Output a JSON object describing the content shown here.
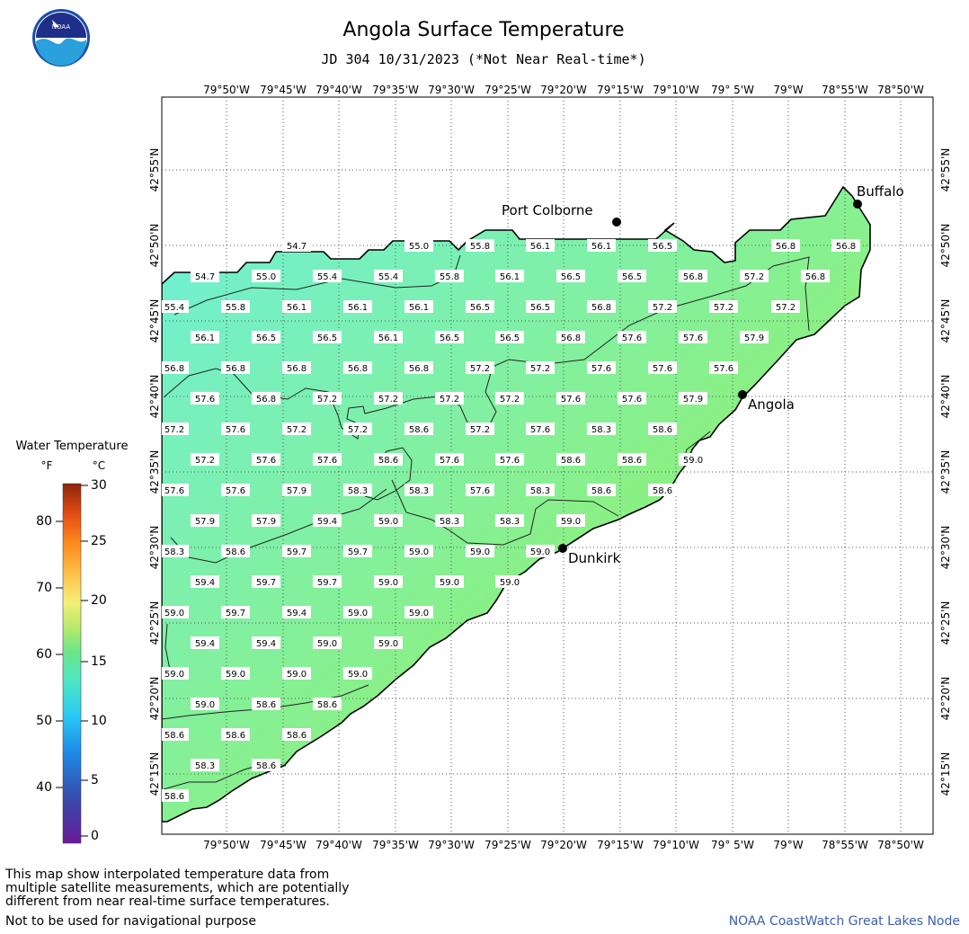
{
  "header": {
    "title": "Angola Surface Temperature",
    "subtitle": "JD 304 10/31/2023 (*Not Near Real-time*)"
  },
  "logo": {
    "text": "NOAA"
  },
  "map": {
    "lon_labels": [
      "79°50'W",
      "79°45'W",
      "79°40'W",
      "79°35'W",
      "79°30'W",
      "79°25'W",
      "79°20'W",
      "79°15'W",
      "79°10'W",
      "79° 5'W",
      "79°W",
      "78°55'W",
      "78°50'W"
    ],
    "lat_labels": [
      "42°55'N",
      "42°50'N",
      "42°45'N",
      "42°40'N",
      "42°35'N",
      "42°30'N",
      "42°25'N",
      "42°20'N",
      "42°15'N"
    ],
    "cities": [
      {
        "name": "Buffalo"
      },
      {
        "name": "Port Colborne"
      },
      {
        "name": "Angola"
      },
      {
        "name": "Dunkirk"
      }
    ],
    "temperature_labels": [
      [
        "54.7",
        "55.0",
        "55.8",
        "56.1",
        "56.1",
        "56.5",
        "56.8",
        "56.8"
      ],
      [
        "54.7",
        "55.0",
        "55.4",
        "55.4",
        "55.8",
        "56.1",
        "56.5",
        "56.5",
        "56.8",
        "57.2",
        "56.8"
      ],
      [
        "55.4",
        "55.8",
        "56.1",
        "56.1",
        "56.1",
        "56.5",
        "56.5",
        "56.8",
        "57.2",
        "57.2",
        "57.2"
      ],
      [
        "56.1",
        "56.5",
        "56.5",
        "56.1",
        "56.5",
        "56.5",
        "56.8",
        "57.6",
        "57.6",
        "57.9"
      ],
      [
        "56.8",
        "56.8",
        "56.8",
        "56.8",
        "56.8",
        "57.2",
        "57.2",
        "57.6",
        "57.6",
        "57.6"
      ],
      [
        "57.6",
        "56.8",
        "57.2",
        "57.2",
        "57.2",
        "57.2",
        "57.6",
        "57.6",
        "57.9"
      ],
      [
        "57.2",
        "57.6",
        "57.2",
        "57.2",
        "58.6",
        "57.2",
        "57.6",
        "58.3",
        "58.6"
      ],
      [
        "57.2",
        "57.6",
        "57.6",
        "58.6",
        "57.6",
        "57.6",
        "58.6",
        "58.6",
        "59.0"
      ],
      [
        "57.6",
        "57.6",
        "57.9",
        "58.3",
        "58.3",
        "57.6",
        "58.3",
        "58.6",
        "58.6"
      ],
      [
        "57.9",
        "57.9",
        "59.4",
        "59.0",
        "58.3",
        "58.3",
        "59.0"
      ],
      [
        "58.3",
        "58.6",
        "59.7",
        "59.7",
        "59.0",
        "59.0",
        "59.0"
      ],
      [
        "59.4",
        "59.7",
        "59.7",
        "59.0",
        "59.0",
        "59.0"
      ],
      [
        "59.0",
        "59.7",
        "59.4",
        "59.0",
        "59.0"
      ],
      [
        "59.4",
        "59.4",
        "59.0",
        "59.0"
      ],
      [
        "59.0",
        "59.0",
        "59.0",
        "59.0"
      ],
      [
        "59.0",
        "58.6",
        "58.6"
      ],
      [
        "58.6",
        "58.6",
        "58.6"
      ],
      [
        "58.3",
        "58.6"
      ],
      [
        "58.6"
      ]
    ]
  },
  "legend": {
    "title": "Water Temperature",
    "unit_f": "°F",
    "unit_c": "°C",
    "f_ticks": [
      "80",
      "70",
      "60",
      "50",
      "40"
    ],
    "c_ticks": [
      "30",
      "25",
      "20",
      "15",
      "10",
      "5",
      "0"
    ],
    "colors": [
      "#6a1b9a",
      "#3f51b5",
      "#1e88e5",
      "#29b6f6",
      "#4dd0e1",
      "#4ee6a4",
      "#7fe87a",
      "#b8e86a",
      "#f0e86a",
      "#ffb74d",
      "#ff8a28",
      "#e64a19",
      "#bf360c",
      "#8d2a0b"
    ]
  },
  "footer": {
    "note_line1": "This map show interpolated temperature data from",
    "note_line2": "multiple satellite measurements, which are potentially",
    "note_line3": "different from near real-time surface temperatures.",
    "nav_warning": "Not to be used for navigational purpose",
    "credit": "NOAA CoastWatch Great Lakes Node"
  }
}
